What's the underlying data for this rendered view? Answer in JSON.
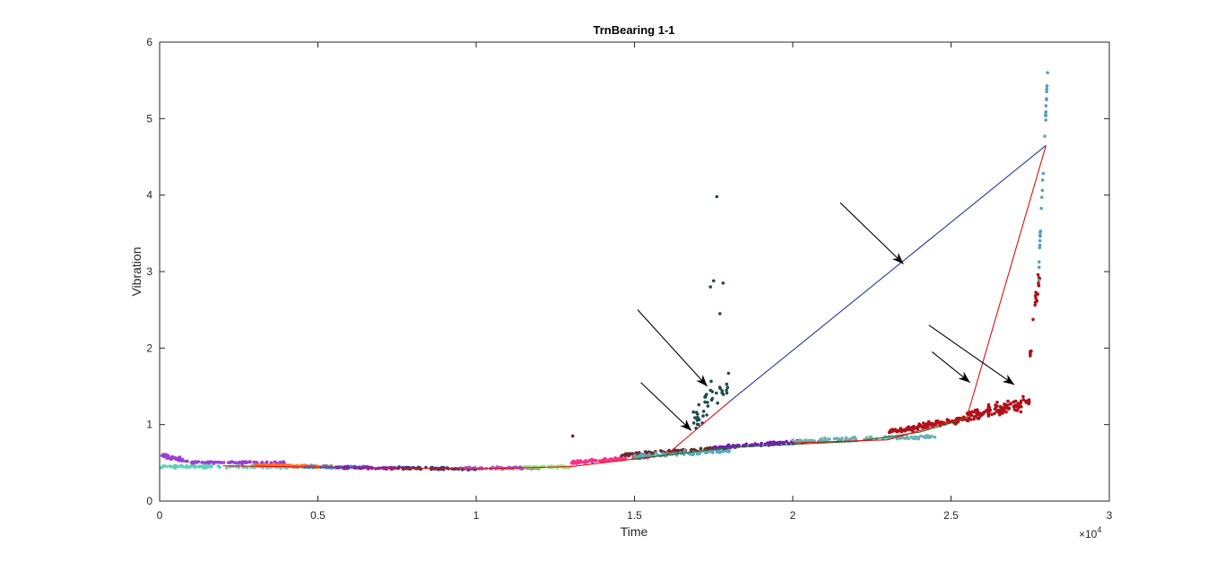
{
  "chart_data": {
    "type": "scatter",
    "title": "TrnBearing 1-1",
    "xlabel": "Time",
    "ylabel": "Vibration",
    "x_exponent_prefix": "×10",
    "x_exponent_power": "4",
    "xlim": [
      0,
      3
    ],
    "ylim": [
      0,
      6
    ],
    "x_ticks": [
      0,
      0.5,
      1,
      1.5,
      2,
      2.5,
      3
    ],
    "x_tick_labels": [
      "0",
      "0.5",
      "1",
      "1.5",
      "2",
      "2.5",
      "3"
    ],
    "y_ticks": [
      0,
      1,
      2,
      3,
      4,
      5,
      6
    ],
    "y_tick_labels": [
      "0",
      "1",
      "2",
      "3",
      "4",
      "5",
      "6"
    ],
    "x_units_note": "x values in units of 10^4",
    "scatter_segments": [
      {
        "name": "segment-1",
        "color": "#9b3fd6",
        "x_range": [
          0.0,
          0.09
        ],
        "y_base": [
          0.6,
          0.52
        ],
        "noise": 0.04,
        "n": 40
      },
      {
        "name": "segment-2",
        "color": "#5fd1b5",
        "x_range": [
          0.0,
          0.5
        ],
        "y_base": [
          0.45,
          0.45
        ],
        "noise": 0.025,
        "n": 120
      },
      {
        "name": "segment-3",
        "color": "#9b3fd6",
        "x_range": [
          0.1,
          0.4
        ],
        "y_base": [
          0.51,
          0.5
        ],
        "noise": 0.02,
        "n": 80
      },
      {
        "name": "segment-4",
        "color": "#ff7020",
        "x_range": [
          0.3,
          0.55
        ],
        "y_base": [
          0.47,
          0.45
        ],
        "noise": 0.02,
        "n": 70
      },
      {
        "name": "segment-5",
        "color": "#4a7fd6",
        "x_range": [
          0.45,
          0.65
        ],
        "y_base": [
          0.45,
          0.44
        ],
        "noise": 0.02,
        "n": 60
      },
      {
        "name": "segment-6",
        "color": "#7b2aa8",
        "x_range": [
          0.55,
          0.8
        ],
        "y_base": [
          0.44,
          0.43
        ],
        "noise": 0.02,
        "n": 70
      },
      {
        "name": "segment-7",
        "color": "#2b3f8a",
        "x_range": [
          0.75,
          1.0
        ],
        "y_base": [
          0.43,
          0.42
        ],
        "noise": 0.02,
        "n": 70
      },
      {
        "name": "segment-8",
        "color": "#a35ac9",
        "x_range": [
          0.95,
          1.2
        ],
        "y_base": [
          0.43,
          0.43
        ],
        "noise": 0.02,
        "n": 70
      },
      {
        "name": "segment-9",
        "color": "#9be37a",
        "x_range": [
          1.15,
          1.3
        ],
        "y_base": [
          0.44,
          0.45
        ],
        "noise": 0.02,
        "n": 50
      },
      {
        "name": "segment-10",
        "color": "#ff2e8a",
        "x_range": [
          1.3,
          1.55
        ],
        "y_base": [
          0.5,
          0.58
        ],
        "noise": 0.03,
        "n": 100
      },
      {
        "name": "segment-11",
        "color": "#6b2a2a",
        "x_range": [
          1.45,
          1.8
        ],
        "y_base": [
          0.6,
          0.7
        ],
        "noise": 0.03,
        "n": 90
      },
      {
        "name": "segment-12",
        "color": "#5aaab8",
        "x_range": [
          1.5,
          1.8
        ],
        "y_base": [
          0.58,
          0.66
        ],
        "noise": 0.04,
        "n": 90
      },
      {
        "name": "segment-13",
        "color": "#1f4d4a",
        "x_range": [
          1.68,
          1.8
        ],
        "y_base": [
          1.0,
          1.6
        ],
        "noise": 0.3,
        "n": 40
      },
      {
        "name": "segment-14",
        "color": "#6f1fb0",
        "x_range": [
          1.75,
          2.05
        ],
        "y_base": [
          0.7,
          0.78
        ],
        "noise": 0.03,
        "n": 100
      },
      {
        "name": "segment-15",
        "color": "#6bb3b3",
        "x_range": [
          2.0,
          2.45
        ],
        "y_base": [
          0.78,
          0.85
        ],
        "noise": 0.04,
        "n": 110
      },
      {
        "name": "segment-16",
        "color": "#b0101a",
        "x_range": [
          2.3,
          2.55
        ],
        "y_base": [
          0.9,
          1.08
        ],
        "noise": 0.06,
        "n": 110
      },
      {
        "name": "segment-17",
        "color": "#b0101a",
        "x_range": [
          2.55,
          2.75
        ],
        "y_base": [
          1.1,
          1.3
        ],
        "noise": 0.12,
        "n": 130
      },
      {
        "name": "segment-18",
        "color": "#b0101a",
        "x_range": [
          2.75,
          2.78
        ],
        "y_base": [
          2.0,
          3.0
        ],
        "noise": 0.25,
        "n": 20
      },
      {
        "name": "segment-19",
        "color": "#5a9ec0",
        "x_range": [
          2.775,
          2.805
        ],
        "y_base": [
          2.8,
          5.6
        ],
        "noise": 0.2,
        "n": 30
      }
    ],
    "outliers": [
      {
        "x": 1.76,
        "y": 3.98,
        "color": "#1f4d4a"
      },
      {
        "x": 1.75,
        "y": 2.88,
        "color": "#1f4d4a"
      },
      {
        "x": 1.78,
        "y": 2.85,
        "color": "#1f4d4a"
      },
      {
        "x": 1.74,
        "y": 2.8,
        "color": "#1f4d4a"
      },
      {
        "x": 1.77,
        "y": 2.45,
        "color": "#1f4d4a"
      },
      {
        "x": 2.805,
        "y": 5.6,
        "color": "#5a9ec0"
      },
      {
        "x": 1.305,
        "y": 0.85,
        "color": "#6b2a2a"
      }
    ],
    "fit_lines": [
      {
        "name": "trend-line-red-1",
        "color": "#e01010",
        "points": [
          [
            0.2,
            0.46
          ],
          [
            0.6,
            0.44
          ],
          [
            1.0,
            0.42
          ],
          [
            1.3,
            0.45
          ],
          [
            1.5,
            0.55
          ],
          [
            1.6,
            0.6
          ],
          [
            1.8,
            1.3
          ]
        ]
      },
      {
        "name": "trend-line-blue",
        "color": "#1f3a93",
        "points": [
          [
            1.8,
            1.3
          ],
          [
            2.8,
            4.65
          ]
        ]
      },
      {
        "name": "trend-line-green",
        "color": "#2a6b2a",
        "points": [
          [
            1.5,
            0.55
          ],
          [
            1.8,
            0.7
          ],
          [
            2.2,
            0.78
          ],
          [
            2.4,
            0.9
          ],
          [
            2.55,
            1.08
          ]
        ]
      },
      {
        "name": "trend-line-red-2",
        "color": "#e01010",
        "points": [
          [
            2.0,
            0.76
          ],
          [
            2.3,
            0.8
          ],
          [
            2.55,
            1.1
          ],
          [
            2.8,
            4.65
          ]
        ]
      }
    ],
    "annotations": [
      {
        "name": "arrow-1",
        "x1": 2.15,
        "y1": 3.9,
        "x2": 2.35,
        "y2": 3.1
      },
      {
        "name": "arrow-2",
        "x1": 1.51,
        "y1": 2.5,
        "x2": 1.73,
        "y2": 1.5
      },
      {
        "name": "arrow-3",
        "x1": 1.52,
        "y1": 1.55,
        "x2": 1.68,
        "y2": 0.92
      },
      {
        "name": "arrow-4",
        "x1": 2.43,
        "y1": 2.3,
        "x2": 2.7,
        "y2": 1.52
      },
      {
        "name": "arrow-5",
        "x1": 2.44,
        "y1": 1.95,
        "x2": 2.56,
        "y2": 1.55
      }
    ]
  }
}
